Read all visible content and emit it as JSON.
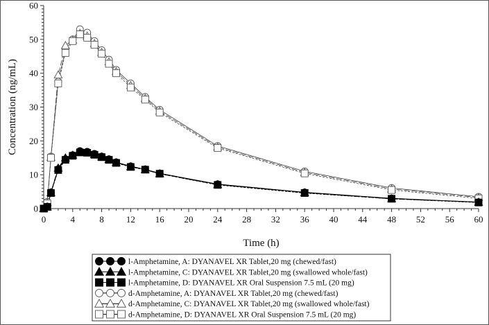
{
  "chart_data": {
    "type": "line",
    "title": "",
    "xlabel": "Time (h)",
    "ylabel": "Concentration (ng/mL)",
    "xlim": [
      0,
      60
    ],
    "ylim": [
      0,
      60
    ],
    "xticks": [
      0,
      4,
      8,
      12,
      16,
      20,
      24,
      28,
      32,
      36,
      40,
      44,
      48,
      52,
      56,
      60
    ],
    "yticks": [
      0,
      10,
      20,
      30,
      40,
      50,
      60
    ],
    "grid": false,
    "legend_position": "bottom",
    "x": [
      0,
      0.5,
      1,
      2,
      3,
      4,
      5,
      6,
      7,
      8,
      9,
      10,
      12,
      14,
      16,
      24,
      36,
      48,
      60
    ],
    "series": [
      {
        "name": "l-Amphetamine, A: DYANAVEL XR Tablet,20 mg (chewed/fast)",
        "marker": "circle",
        "filled": true,
        "dash": "solid",
        "values": [
          0,
          0.6,
          4.8,
          11.6,
          14.6,
          15.8,
          17.0,
          16.8,
          16.2,
          15.4,
          14.6,
          13.7,
          12.5,
          11.6,
          10.4,
          7.2,
          4.8,
          3.0,
          1.9
        ]
      },
      {
        "name": "l-Amphetamine, C: DYANAVEL XR Tablet,20 mg (swallowed whole/fast)",
        "marker": "triangle",
        "filled": true,
        "dash": "long",
        "values": [
          0,
          0.5,
          4.7,
          12.0,
          15.0,
          15.8,
          16.8,
          16.6,
          16.0,
          15.3,
          14.5,
          13.6,
          12.4,
          11.5,
          10.3,
          7.1,
          4.7,
          2.9,
          1.9
        ]
      },
      {
        "name": "l-Amphetamine, D: DYANAVEL XR Oral Suspension 7.5 mL (20 mg)",
        "marker": "square",
        "filled": true,
        "dash": "short",
        "values": [
          0,
          0.5,
          4.6,
          11.4,
          14.4,
          15.6,
          16.6,
          16.5,
          15.9,
          15.2,
          14.4,
          13.5,
          12.3,
          11.5,
          10.3,
          7.0,
          4.6,
          2.9,
          1.8
        ]
      },
      {
        "name": "d-Amphetamine, A: DYANAVEL XR Tablet,20 mg (chewed/fast)",
        "marker": "circle",
        "filled": false,
        "dash": "solid",
        "values": [
          0,
          2.0,
          15.4,
          37.5,
          47.0,
          50.0,
          53.0,
          52.0,
          49.5,
          46.8,
          44.0,
          41.0,
          37.0,
          33.0,
          29.2,
          18.5,
          11.0,
          6.1,
          3.5
        ]
      },
      {
        "name": "d-Amphetamine, C: DYANAVEL XR Tablet,20 mg (swallowed whole/fast)",
        "marker": "triangle",
        "filled": false,
        "dash": "long",
        "values": [
          0,
          1.8,
          15.2,
          39.5,
          48.2,
          49.8,
          51.8,
          51.0,
          48.8,
          46.2,
          43.4,
          40.5,
          36.4,
          32.6,
          28.8,
          18.2,
          10.7,
          5.8,
          3.3
        ]
      },
      {
        "name": "d-Amphetamine, D: DYANAVEL XR Oral Suspension 7.5 mL (20 mg)",
        "marker": "square",
        "filled": false,
        "dash": "short",
        "values": [
          0,
          1.5,
          15.0,
          37.0,
          46.0,
          49.5,
          51.5,
          50.5,
          48.4,
          45.8,
          42.8,
          40.0,
          35.8,
          32.2,
          28.4,
          17.9,
          10.4,
          5.5,
          3.0
        ]
      }
    ]
  }
}
